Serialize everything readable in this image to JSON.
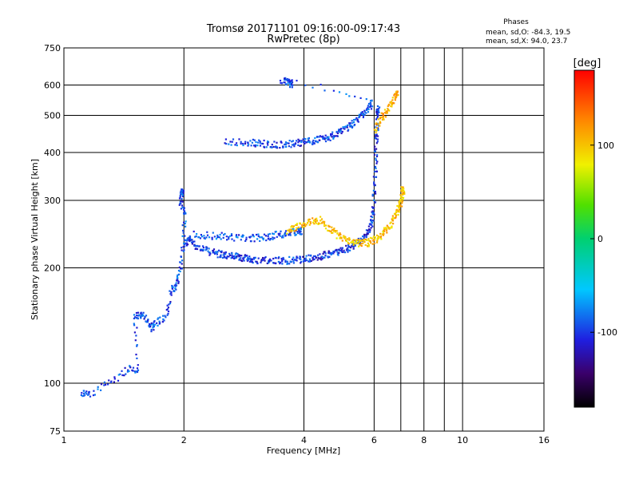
{
  "chart_data": {
    "type": "scatter",
    "title": "Tromsø 20171101 09:16:00-09:17:43",
    "subtitle": "RwPretec (8p)",
    "xlabel": "Frequency [MHz]",
    "ylabel": "Stationary phase Virtual Height [km]",
    "x_scale": "log",
    "y_scale": "log",
    "xlim": [
      1,
      16
    ],
    "ylim": [
      75,
      750
    ],
    "grid": true,
    "x_ticks": [
      1,
      2,
      4,
      6,
      8,
      10,
      16
    ],
    "x_tick_labels": [
      "1",
      "2",
      "4",
      "6",
      "8",
      "10",
      "16"
    ],
    "y_ticks": [
      75,
      100,
      200,
      300,
      400,
      500,
      600,
      750
    ],
    "y_tick_labels": [
      "75",
      "100",
      "200",
      "300",
      "400",
      "500",
      "600",
      "750"
    ],
    "stats": {
      "heading": "Phases",
      "line1": "mean, sd,O: -84.3, 19.5",
      "line2": "mean, sd,X: 94.0, 23.7"
    },
    "colorbar": {
      "label": "[deg]",
      "range": [
        -180,
        180
      ],
      "ticks": [
        100,
        0,
        -100
      ],
      "tick_labels": [
        "100",
        "0",
        "-100"
      ]
    },
    "series": [
      {
        "trace": "o-mode-F-trace",
        "phase": -100,
        "points": [
          [
            2.0,
            231
          ],
          [
            2.05,
            240
          ],
          [
            2.1,
            232
          ],
          [
            2.2,
            226
          ],
          [
            2.3,
            222
          ],
          [
            2.4,
            219
          ],
          [
            2.5,
            217
          ],
          [
            2.6,
            216
          ],
          [
            2.7,
            215
          ],
          [
            2.8,
            213
          ],
          [
            2.9,
            212
          ],
          [
            3.0,
            211
          ],
          [
            3.2,
            210
          ],
          [
            3.4,
            210
          ],
          [
            3.6,
            210
          ],
          [
            3.8,
            211
          ],
          [
            4.0,
            211
          ],
          [
            4.2,
            213
          ],
          [
            4.4,
            215
          ],
          [
            4.6,
            218
          ],
          [
            4.8,
            221
          ],
          [
            5.0,
            224
          ],
          [
            5.2,
            228
          ],
          [
            5.4,
            233
          ],
          [
            5.6,
            240
          ],
          [
            5.8,
            252
          ],
          [
            5.9,
            268
          ],
          [
            5.95,
            290
          ],
          [
            6.0,
            330
          ],
          [
            6.03,
            380
          ],
          [
            6.05,
            430
          ],
          [
            6.07,
            470
          ],
          [
            6.1,
            520
          ]
        ]
      },
      {
        "trace": "o-mode-upper-band",
        "phase": -90,
        "points": [
          [
            2.1,
            245
          ],
          [
            2.3,
            244
          ],
          [
            2.5,
            243
          ],
          [
            2.7,
            241
          ],
          [
            2.9,
            240
          ],
          [
            3.1,
            241
          ],
          [
            3.3,
            243
          ],
          [
            3.5,
            246
          ],
          [
            3.7,
            248
          ],
          [
            3.9,
            251
          ]
        ]
      },
      {
        "trace": "o-mode-E-and-Es",
        "phase": -95,
        "points": [
          [
            1.1,
            95
          ],
          [
            1.15,
            94
          ],
          [
            1.3,
            101
          ],
          [
            1.45,
            110
          ],
          [
            1.52,
            108
          ],
          [
            1.5,
            150
          ],
          [
            1.55,
            152
          ],
          [
            1.6,
            148
          ],
          [
            1.65,
            140
          ],
          [
            1.7,
            145
          ],
          [
            1.8,
            150
          ],
          [
            1.85,
            175
          ],
          [
            1.9,
            180
          ],
          [
            1.95,
            200
          ],
          [
            1.98,
            230
          ],
          [
            2.0,
            280
          ],
          [
            1.95,
            300
          ],
          [
            1.97,
            320
          ]
        ]
      },
      {
        "trace": "o-mode-multi-hop",
        "phase": -95,
        "points": [
          [
            2.5,
            430
          ],
          [
            2.8,
            427
          ],
          [
            3.0,
            425
          ],
          [
            3.2,
            423
          ],
          [
            3.4,
            422
          ],
          [
            3.6,
            423
          ],
          [
            3.8,
            425
          ],
          [
            4.0,
            428
          ],
          [
            4.2,
            432
          ],
          [
            4.4,
            436
          ],
          [
            4.6,
            440
          ],
          [
            4.8,
            450
          ],
          [
            5.0,
            460
          ],
          [
            5.2,
            472
          ],
          [
            5.4,
            487
          ],
          [
            5.6,
            505
          ],
          [
            5.8,
            528
          ],
          [
            5.9,
            545
          ],
          [
            3.5,
            620
          ],
          [
            3.6,
            615
          ],
          [
            3.7,
            608
          ]
        ]
      },
      {
        "trace": "x-mode-F-trace",
        "phase": 100,
        "points": [
          [
            3.6,
            252
          ],
          [
            3.8,
            257
          ],
          [
            4.0,
            262
          ],
          [
            4.2,
            266
          ],
          [
            4.4,
            268
          ],
          [
            4.6,
            255
          ],
          [
            4.8,
            245
          ],
          [
            5.0,
            240
          ],
          [
            5.2,
            236
          ],
          [
            5.4,
            234
          ],
          [
            5.6,
            233
          ],
          [
            5.8,
            234
          ],
          [
            6.0,
            238
          ],
          [
            6.2,
            244
          ],
          [
            6.4,
            252
          ],
          [
            6.6,
            263
          ],
          [
            6.8,
            277
          ],
          [
            6.9,
            290
          ],
          [
            7.0,
            305
          ],
          [
            7.05,
            320
          ]
        ]
      },
      {
        "trace": "x-mode-upper",
        "phase": 110,
        "points": [
          [
            6.0,
            460
          ],
          [
            6.2,
            490
          ],
          [
            6.4,
            510
          ],
          [
            6.6,
            540
          ],
          [
            6.8,
            570
          ]
        ]
      }
    ]
  }
}
